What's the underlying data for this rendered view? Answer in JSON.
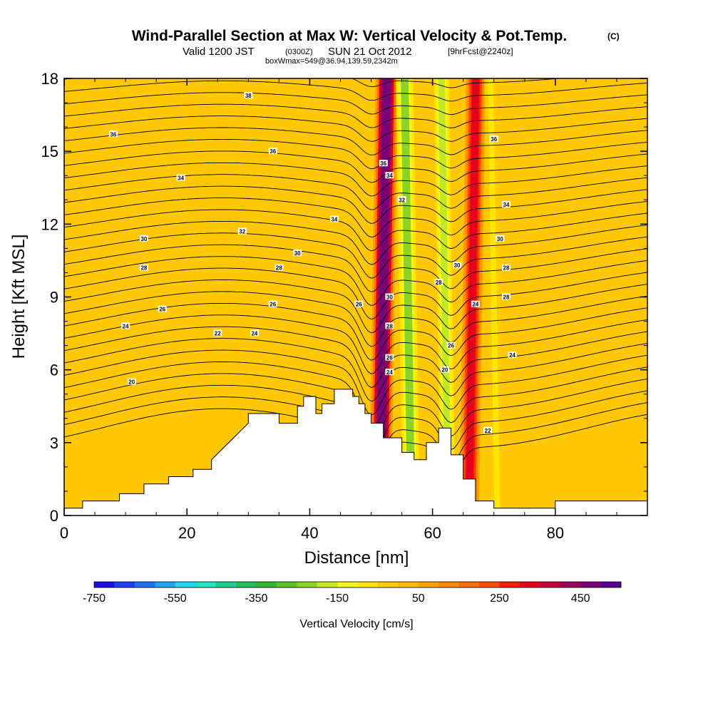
{
  "chart_data": {
    "type": "heatmap",
    "title": "Wind-Parallel Section at Max W: Vertical Velocity & Pot.Temp.",
    "title_mark": "(C)",
    "subtitle": {
      "prefix": "Valid 1200 JST",
      "utc": "(0300Z)",
      "date": "SUN 21 Oct 2012",
      "forecast": "[9hrFcst@2240z]"
    },
    "box_info": "boxWmax=549@36.94,139.59,2342m",
    "xlabel": "Distance [nm]",
    "ylabel": "Height [Kft MSL]",
    "xlim": [
      0,
      95
    ],
    "ylim": [
      0,
      18
    ],
    "xticks": [
      0,
      20,
      40,
      60,
      80
    ],
    "yticks": [
      0,
      3,
      6,
      9,
      12,
      15,
      18
    ],
    "terrain": {
      "x": [
        0,
        3,
        3,
        9,
        9,
        13,
        13,
        17,
        17,
        21,
        21,
        24,
        24,
        26,
        28,
        30,
        30,
        35,
        35,
        38,
        38,
        39,
        39,
        41,
        41,
        42,
        42,
        44,
        44,
        47,
        47,
        48,
        48,
        49,
        49,
        50,
        50,
        52,
        52,
        55,
        55,
        57,
        57,
        59,
        59,
        61,
        61,
        63,
        63,
        65,
        65,
        67,
        67,
        70,
        70,
        80,
        80,
        95
      ],
      "y": [
        0.3,
        0.3,
        0.6,
        0.6,
        0.9,
        0.9,
        1.3,
        1.3,
        1.6,
        1.6,
        1.9,
        1.9,
        2.3,
        2.8,
        3.3,
        3.8,
        4.2,
        4.2,
        3.8,
        3.8,
        4.5,
        4.5,
        4.9,
        4.9,
        4.2,
        4.2,
        4.6,
        4.6,
        5.2,
        5.2,
        4.9,
        4.9,
        4.6,
        4.6,
        4.2,
        4.2,
        3.8,
        3.8,
        3.2,
        3.2,
        2.6,
        2.6,
        2.3,
        2.3,
        3.0,
        3.0,
        3.6,
        3.6,
        2.5,
        2.5,
        1.5,
        1.5,
        0.6,
        0.6,
        0.3,
        0.3,
        0.6,
        0.6
      ]
    },
    "vertical_velocity_bands": [
      {
        "x_center": 52,
        "half_width": 1.6,
        "peak": 549,
        "label": "updraft"
      },
      {
        "x_center": 56,
        "half_width": 1.4,
        "peak": -250,
        "label": "downdraft"
      },
      {
        "x_center": 62,
        "half_width": 1.2,
        "peak": -200,
        "label": "downdraft"
      },
      {
        "x_center": 66.5,
        "half_width": 1.4,
        "peak": 380,
        "label": "updraft"
      },
      {
        "x_center": 70,
        "half_width": 1.0,
        "peak": -60,
        "label": "weak downdraft"
      }
    ],
    "contour_labels": [
      {
        "x": 30,
        "y": 17.3,
        "text": "38"
      },
      {
        "x": 8,
        "y": 15.7,
        "text": "36"
      },
      {
        "x": 34,
        "y": 15.0,
        "text": "36"
      },
      {
        "x": 70,
        "y": 15.5,
        "text": "36"
      },
      {
        "x": 19,
        "y": 13.9,
        "text": "34"
      },
      {
        "x": 44,
        "y": 12.2,
        "text": "34"
      },
      {
        "x": 72,
        "y": 12.8,
        "text": "34"
      },
      {
        "x": 29,
        "y": 11.7,
        "text": "32"
      },
      {
        "x": 13,
        "y": 11.4,
        "text": "30"
      },
      {
        "x": 38,
        "y": 10.8,
        "text": "30"
      },
      {
        "x": 71,
        "y": 11.4,
        "text": "30"
      },
      {
        "x": 13,
        "y": 10.2,
        "text": "28"
      },
      {
        "x": 35,
        "y": 10.2,
        "text": "28"
      },
      {
        "x": 64,
        "y": 10.3,
        "text": "30"
      },
      {
        "x": 61,
        "y": 9.6,
        "text": "28"
      },
      {
        "x": 72,
        "y": 10.2,
        "text": "28"
      },
      {
        "x": 72,
        "y": 9.0,
        "text": "28"
      },
      {
        "x": 16,
        "y": 8.5,
        "text": "26"
      },
      {
        "x": 34,
        "y": 8.7,
        "text": "26"
      },
      {
        "x": 48,
        "y": 8.7,
        "text": "26"
      },
      {
        "x": 67,
        "y": 8.7,
        "text": "24"
      },
      {
        "x": 10,
        "y": 7.8,
        "text": "24"
      },
      {
        "x": 25,
        "y": 7.5,
        "text": "22"
      },
      {
        "x": 31,
        "y": 7.5,
        "text": "24"
      },
      {
        "x": 62,
        "y": 6.0,
        "text": "20"
      },
      {
        "x": 73,
        "y": 6.6,
        "text": "24"
      },
      {
        "x": 11,
        "y": 5.5,
        "text": "20"
      },
      {
        "x": 69,
        "y": 3.5,
        "text": "22"
      },
      {
        "x": 52,
        "y": 14.5,
        "text": "36"
      },
      {
        "x": 53,
        "y": 14.0,
        "text": "34"
      },
      {
        "x": 55,
        "y": 13.0,
        "text": "32"
      },
      {
        "x": 53,
        "y": 9.0,
        "text": "30"
      },
      {
        "x": 53,
        "y": 7.8,
        "text": "28"
      },
      {
        "x": 53,
        "y": 6.5,
        "text": "26"
      },
      {
        "x": 53,
        "y": 5.9,
        "text": "24"
      },
      {
        "x": 63,
        "y": 7.0,
        "text": "26"
      }
    ],
    "colorbar": {
      "label": "Vertical Velocity [cm/s]",
      "ticks": [
        "-750",
        "-550",
        "-350",
        "-150",
        "50",
        "250",
        "450"
      ],
      "colors": [
        "#1a0fe0",
        "#1f3ff2",
        "#1f6ff5",
        "#1fa5ef",
        "#21d6f2",
        "#1fe5c0",
        "#1fd08c",
        "#21bf5e",
        "#32b52f",
        "#5ec224",
        "#8bd426",
        "#c3e824",
        "#f5f51f",
        "#ffe600",
        "#ffcc00",
        "#ffb700",
        "#ffa200",
        "#ff8a00",
        "#ff6e00",
        "#ff4e00",
        "#ff1f00",
        "#e6001f",
        "#c2003a",
        "#9e005a",
        "#7a0078",
        "#5a0090"
      ]
    }
  }
}
